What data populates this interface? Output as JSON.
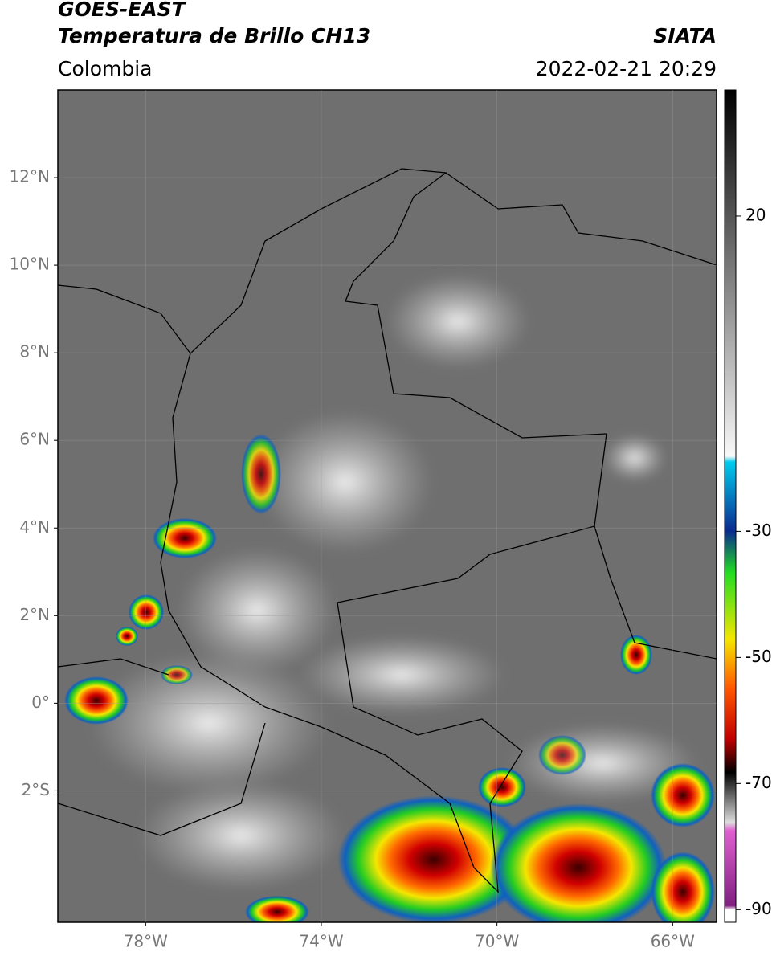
{
  "header": {
    "title": "GOES-EAST",
    "subtitle": "Temperatura de Brillo CH13",
    "source": "SIATA",
    "region": "Colombia",
    "datetime": "2022-02-21 20:29"
  },
  "map": {
    "xlim": [
      -80,
      -65
    ],
    "ylim": [
      -5,
      14
    ],
    "xticks": [
      {
        "value": -78,
        "label": "78°W"
      },
      {
        "value": -74,
        "label": "74°W"
      },
      {
        "value": -70,
        "label": "70°W"
      },
      {
        "value": -66,
        "label": "66°W"
      }
    ],
    "yticks": [
      {
        "value": 12,
        "label": "12°N"
      },
      {
        "value": 10,
        "label": "10°N"
      },
      {
        "value": 8,
        "label": "8°N"
      },
      {
        "value": 6,
        "label": "6°N"
      },
      {
        "value": 4,
        "label": "4°N"
      },
      {
        "value": 2,
        "label": "2°N"
      },
      {
        "value": 0,
        "label": "0°"
      },
      {
        "value": -2,
        "label": "2°S"
      }
    ],
    "grid": true
  },
  "colorbar": {
    "lim": [
      -92,
      40
    ],
    "ticks": [
      20,
      -30,
      -50,
      -70,
      -90
    ]
  }
}
